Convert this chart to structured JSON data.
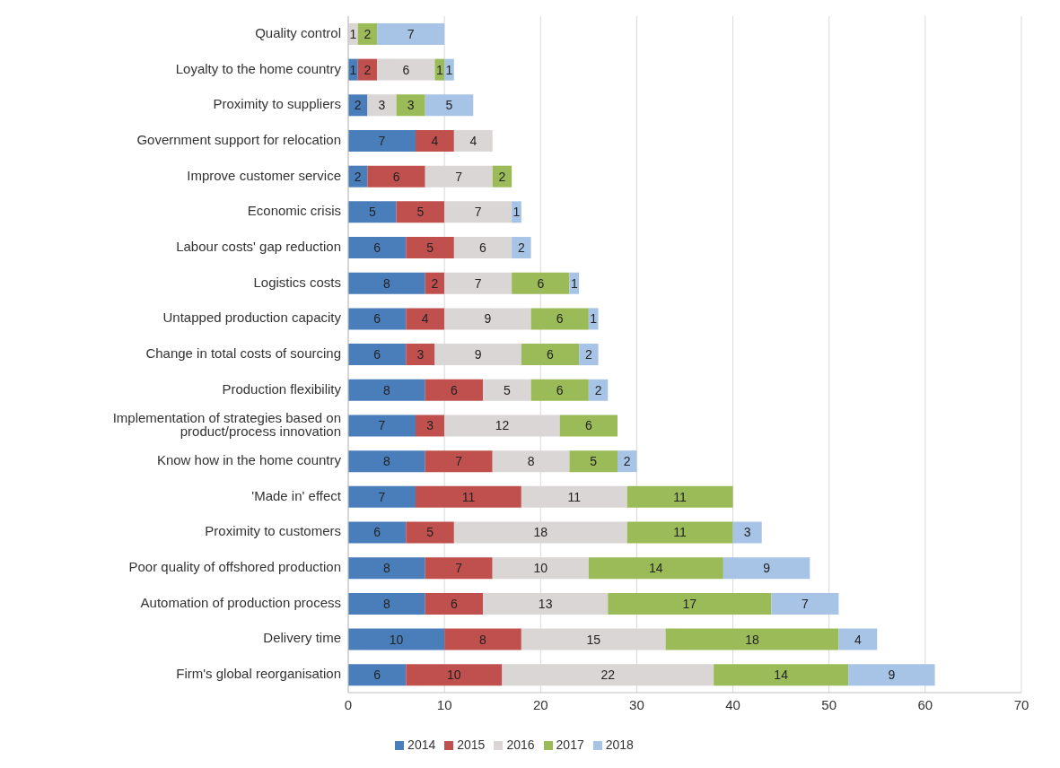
{
  "chart_data": {
    "type": "bar",
    "orientation": "horizontal",
    "stacked": true,
    "categories": [
      "Quality control",
      "Loyalty to the home country",
      "Proximity to suppliers",
      "Government support for relocation",
      "Improve customer service",
      "Economic crisis",
      "Labour costs' gap reduction",
      "Logistics costs",
      "Untapped production capacity",
      "Change in total costs of sourcing",
      "Production flexibility",
      "Implementation of strategies based on product/process innovation",
      "Know how in the home country",
      "'Made in' effect",
      "Proximity to customers",
      "Poor quality of offshored production",
      "Automation of production process",
      "Delivery time",
      "Firm's global reorganisation"
    ],
    "series": [
      {
        "name": "2014",
        "color": "#4a7ebb",
        "values": [
          null,
          1,
          2,
          7,
          2,
          5,
          6,
          8,
          6,
          6,
          8,
          7,
          8,
          7,
          6,
          8,
          8,
          10,
          6
        ]
      },
      {
        "name": "2015",
        "color": "#c0504d",
        "values": [
          null,
          2,
          null,
          4,
          6,
          5,
          5,
          2,
          4,
          3,
          6,
          3,
          7,
          11,
          5,
          7,
          6,
          8,
          10
        ]
      },
      {
        "name": "2016",
        "color": "#d9d6d5",
        "values": [
          1,
          6,
          3,
          4,
          7,
          7,
          6,
          7,
          9,
          9,
          5,
          12,
          8,
          11,
          18,
          10,
          13,
          15,
          22
        ]
      },
      {
        "name": "2017",
        "color": "#9bbb59",
        "values": [
          2,
          1,
          3,
          null,
          2,
          null,
          null,
          6,
          6,
          6,
          6,
          6,
          5,
          11,
          11,
          14,
          17,
          18,
          14
        ]
      },
      {
        "name": "2018",
        "color": "#a7c4e6",
        "values": [
          7,
          1,
          5,
          null,
          null,
          1,
          2,
          1,
          1,
          2,
          2,
          null,
          2,
          null,
          3,
          9,
          7,
          4,
          9
        ]
      }
    ],
    "xlim": [
      0,
      70
    ],
    "xticks": [
      0,
      10,
      20,
      30,
      40,
      50,
      60,
      70
    ],
    "grid": "x",
    "legend": "bottom",
    "data_labels": true
  }
}
